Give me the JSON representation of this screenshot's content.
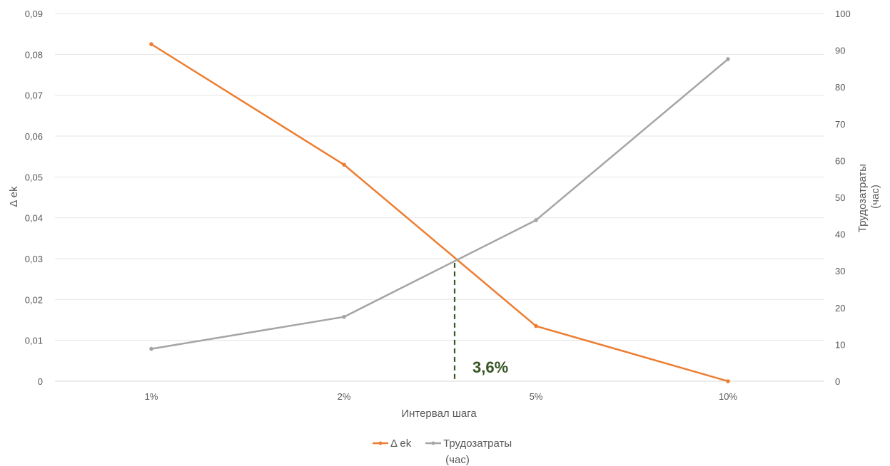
{
  "chart_data": {
    "type": "line",
    "categories": [
      "1%",
      "2%",
      "5%",
      "10%"
    ],
    "xlabel": "Интервал шага",
    "ylabel": "Δ ek",
    "y2label": [
      "Трудозатраты",
      "(час)"
    ],
    "ylim": [
      0,
      0.09
    ],
    "yticks": [
      "0",
      "0,01",
      "0,02",
      "0,03",
      "0,04",
      "0,05",
      "0,06",
      "0,07",
      "0,08",
      "0,09"
    ],
    "y2lim": [
      0,
      100
    ],
    "y2ticks": [
      "0",
      "10",
      "20",
      "30",
      "40",
      "50",
      "60",
      "70",
      "80",
      "90",
      "100"
    ],
    "grid": true,
    "legend_position": "bottom",
    "series": [
      {
        "name": "Δ ek",
        "axis": "left",
        "color": "#ED7D31",
        "values": [
          0.0825,
          0.053,
          0.0135,
          0.0
        ]
      },
      {
        "name": "Трудозатраты (час)",
        "legend_lines": [
          "Трудозатраты",
          "(час)"
        ],
        "axis": "right",
        "color": "#A5A5A5",
        "values": [
          8.8,
          17.5,
          43.8,
          87.6
        ]
      }
    ],
    "annotations": [
      {
        "text": "3,6%",
        "type": "vertical-dashed-line",
        "color": "#375623",
        "x_between": [
          "2%",
          "5%"
        ],
        "y": 0.0295
      }
    ]
  }
}
